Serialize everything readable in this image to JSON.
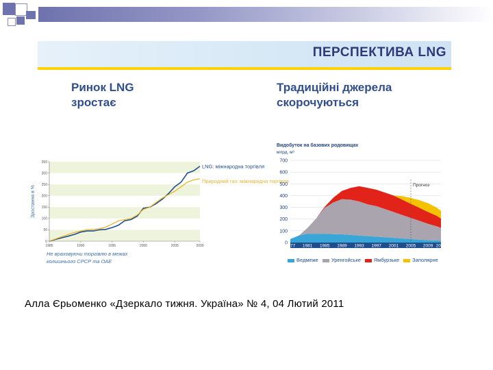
{
  "banner": {
    "title": "ПЕРСПЕКТИВА LNG",
    "accent_color": "#ffd200"
  },
  "left": {
    "heading_line1": "Ринок LNG",
    "heading_line2": "зростає",
    "note": "Не враховуючи торгівлю в межах колишнього СРСР та ОАЕ"
  },
  "right": {
    "heading_line1": "Традиційні джерела",
    "heading_line2": "скорочуються"
  },
  "caption": "Алла Єрьоменко «Дзеркало тижня. Україна» № 4, 04 Лютий 2011",
  "chart_data": [
    {
      "type": "line",
      "ylabel": "Зростання в %",
      "ylim": [
        0,
        350
      ],
      "y_ticks": [
        "0",
        "50",
        "100",
        "150",
        "200",
        "250",
        "300",
        "350"
      ],
      "xlim": [
        1985,
        2009
      ],
      "x_ticks": [
        "1985",
        "1990",
        "1995",
        "2000",
        "2005",
        "2009"
      ],
      "grid": "shaded bands",
      "legend": "right",
      "note": "Не враховуючи торгівлю в межах колишнього СРСР та ОАЕ",
      "series": [
        {
          "name": "LNG: міжнародна торгівля",
          "color": "#1f4e8c",
          "x": [
            1985,
            1986,
            1987,
            1988,
            1989,
            1990,
            1991,
            1992,
            1993,
            1994,
            1995,
            1996,
            1997,
            1998,
            1999,
            2000,
            2001,
            2002,
            2003,
            2004,
            2005,
            2006,
            2007,
            2008,
            2009
          ],
          "y": [
            0,
            8,
            15,
            22,
            30,
            40,
            45,
            45,
            50,
            52,
            60,
            70,
            90,
            95,
            110,
            145,
            150,
            165,
            185,
            210,
            240,
            260,
            300,
            310,
            330
          ]
        },
        {
          "name": "Природний газ: міжнародна торгівля",
          "color": "#e5b52c",
          "x": [
            1985,
            1986,
            1987,
            1988,
            1989,
            1990,
            1991,
            1992,
            1993,
            1994,
            1995,
            1996,
            1997,
            1998,
            1999,
            2000,
            2001,
            2002,
            2003,
            2004,
            2005,
            2006,
            2007,
            2008,
            2009
          ],
          "y": [
            0,
            10,
            20,
            30,
            38,
            45,
            50,
            52,
            55,
            62,
            75,
            90,
            95,
            100,
            115,
            140,
            150,
            170,
            190,
            205,
            220,
            240,
            260,
            270,
            275
          ]
        }
      ]
    },
    {
      "type": "area",
      "title": "Видобуток на базових родовищах",
      "ylabel": "млрд. м³",
      "ylim": [
        0,
        700
      ],
      "y_ticks": [
        "0",
        "100",
        "200",
        "300",
        "400",
        "500",
        "600",
        "700"
      ],
      "xlim": [
        1977,
        2012
      ],
      "x_ticks": [
        "1977",
        "1981",
        "1985",
        "1989",
        "1993",
        "1997",
        "2001",
        "2005",
        "2009",
        "2012"
      ],
      "annotation": {
        "text": "Прогноз",
        "at_year": 2005
      },
      "legend": "bottom",
      "x": [
        1977,
        1979,
        1981,
        1983,
        1985,
        1987,
        1989,
        1991,
        1993,
        1995,
        1997,
        1999,
        2001,
        2003,
        2005,
        2007,
        2009,
        2011,
        2012
      ],
      "series": [
        {
          "name": "Ведмеже",
          "color": "#3aa6d8",
          "values": [
            30,
            60,
            75,
            75,
            75,
            72,
            70,
            65,
            60,
            55,
            50,
            45,
            40,
            35,
            30,
            25,
            20,
            18,
            15
          ]
        },
        {
          "name": "Уренгойське",
          "color": "#a9a4ad",
          "values": [
            0,
            0,
            50,
            130,
            220,
            270,
            300,
            300,
            290,
            270,
            260,
            240,
            220,
            200,
            180,
            160,
            140,
            120,
            110
          ]
        },
        {
          "name": "Ямбурзьке",
          "color": "#e2231a",
          "values": [
            0,
            0,
            0,
            0,
            10,
            40,
            70,
            100,
            130,
            140,
            140,
            140,
            140,
            130,
            120,
            110,
            100,
            90,
            80
          ]
        },
        {
          "name": "Заполярне",
          "color": "#f5c200",
          "values": [
            0,
            0,
            0,
            0,
            0,
            0,
            0,
            0,
            0,
            0,
            0,
            0,
            0,
            30,
            50,
            65,
            75,
            70,
            65
          ]
        }
      ]
    }
  ]
}
